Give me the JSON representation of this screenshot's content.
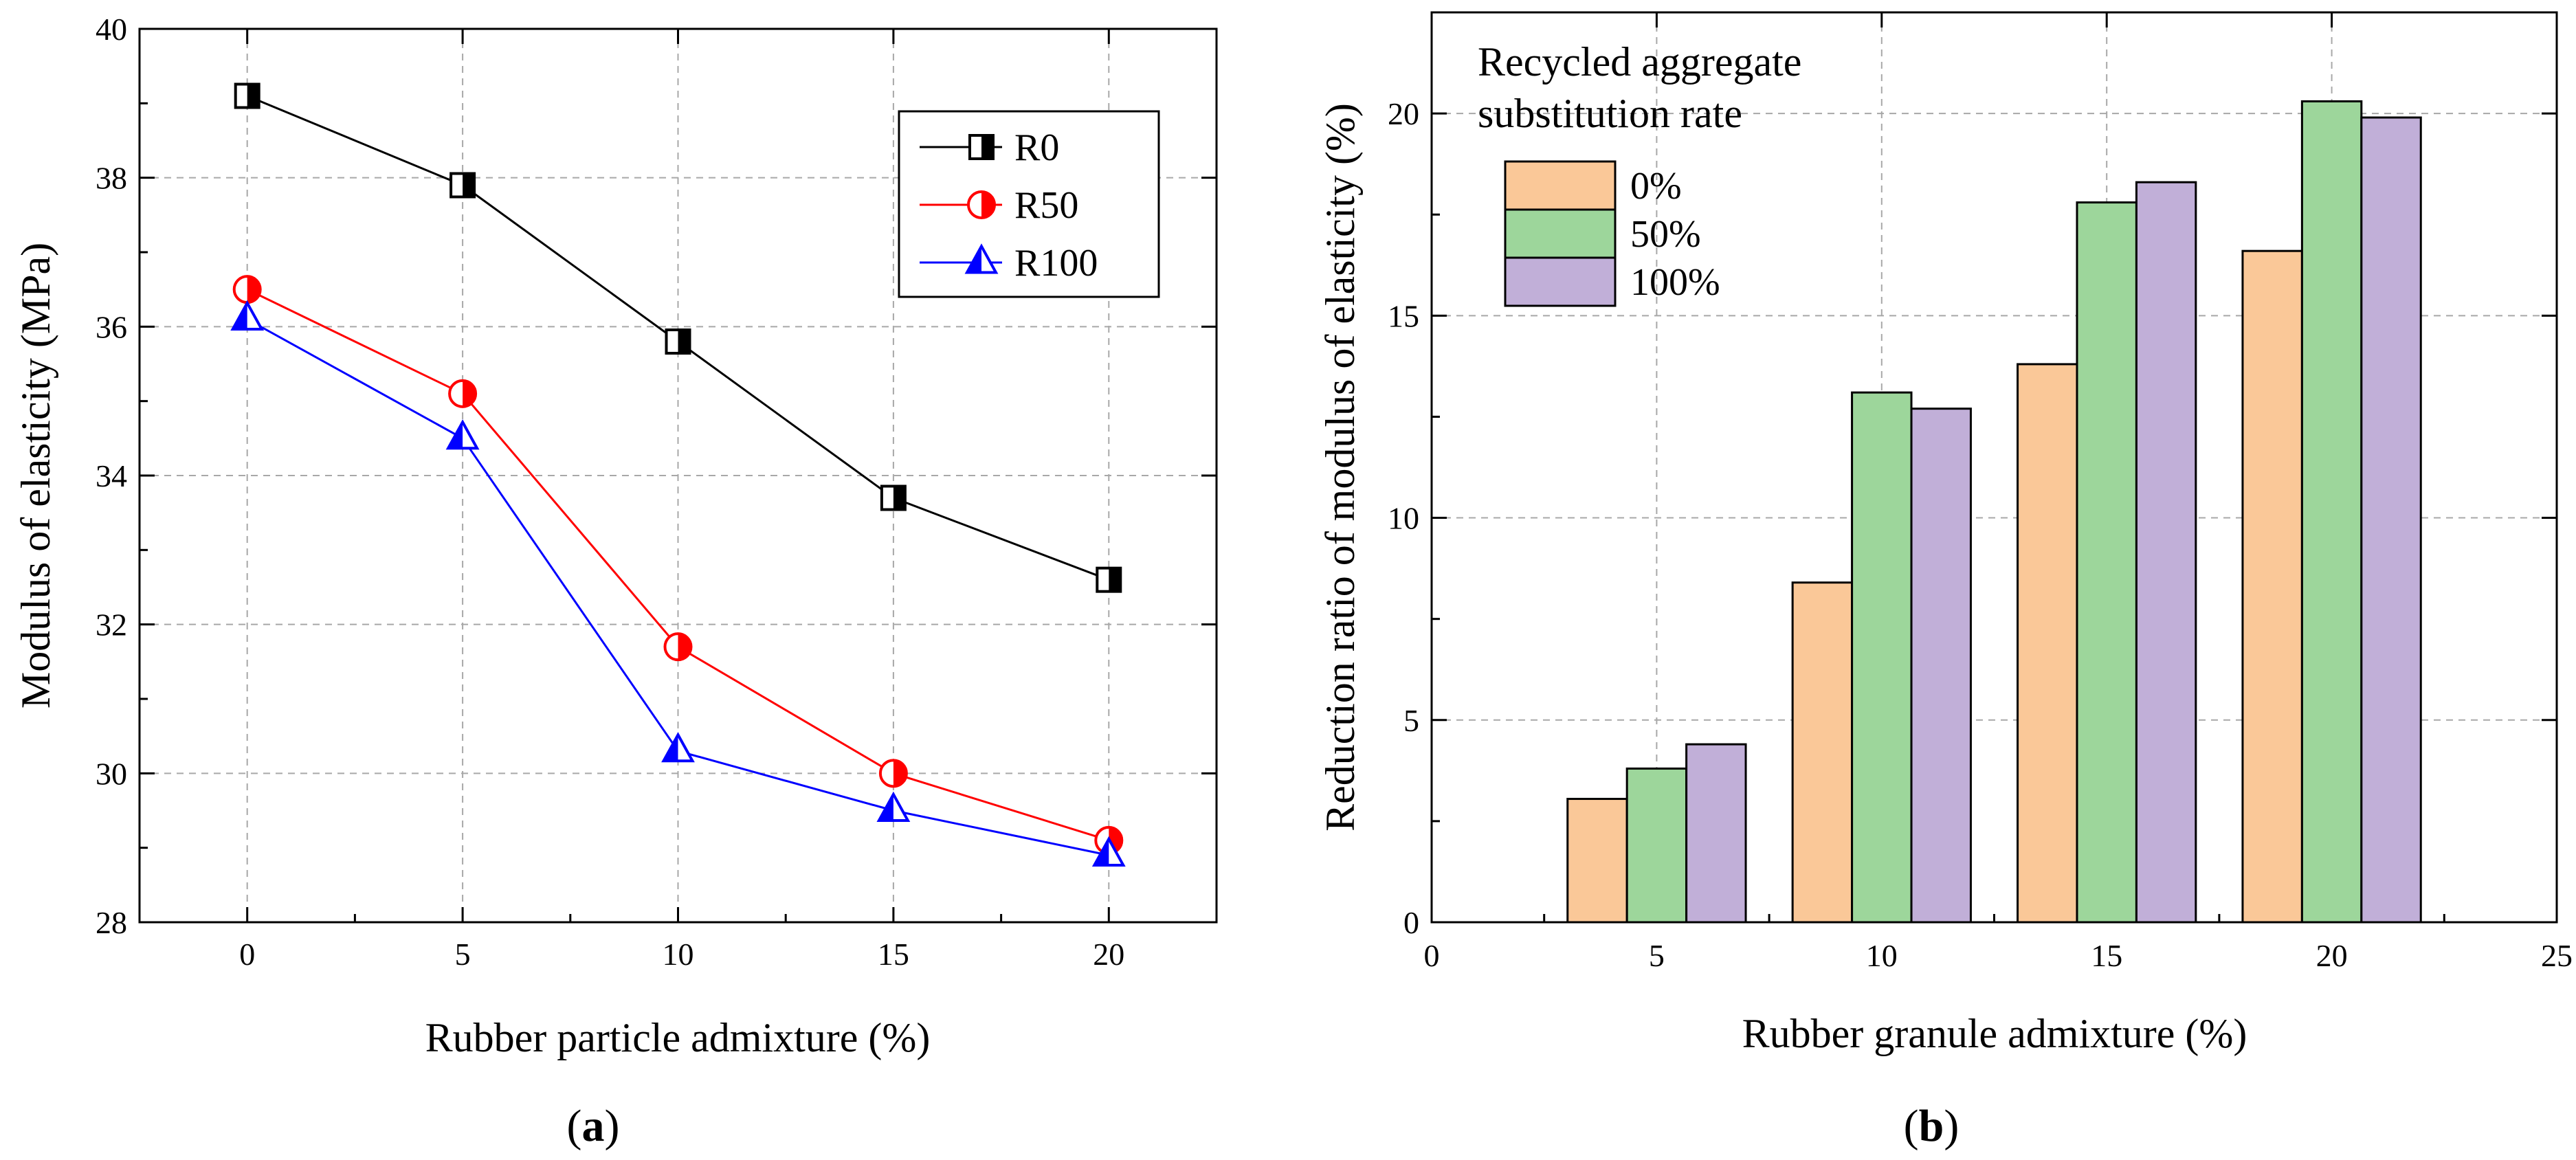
{
  "chart_data": [
    {
      "type": "line",
      "panel_label": "a",
      "xlabel": "Rubber particle admixture (%)",
      "ylabel": "Modulus of elasticity (MPa)",
      "xlim": [
        -2.5,
        22.5
      ],
      "ylim": [
        28,
        40
      ],
      "xticks": [
        "0",
        "5",
        "10",
        "15",
        "20"
      ],
      "yticks": [
        "28",
        "30",
        "32",
        "34",
        "36",
        "38",
        "40"
      ],
      "grid": true,
      "legend_position": "top-right",
      "x": [
        0,
        5,
        10,
        15,
        20
      ],
      "series": [
        {
          "name": "R0",
          "values": [
            39.1,
            37.9,
            35.8,
            33.7,
            32.6
          ],
          "color": "#000000",
          "marker": "half-square"
        },
        {
          "name": "R50",
          "values": [
            36.5,
            35.1,
            31.7,
            30.0,
            29.1
          ],
          "color": "#ff0000",
          "marker": "half-circle"
        },
        {
          "name": "R100",
          "values": [
            36.1,
            34.5,
            30.3,
            29.5,
            28.9
          ],
          "color": "#0000ff",
          "marker": "half-triangle"
        }
      ]
    },
    {
      "type": "bar",
      "panel_label": "b",
      "xlabel": "Rubber granule admixture (%)",
      "ylabel": "Reduction ratio of modulus of elasticity (%)",
      "xlim": [
        0,
        25
      ],
      "ylim": [
        0,
        22.5
      ],
      "xticks": [
        "0",
        "5",
        "10",
        "15",
        "20",
        "25"
      ],
      "yticks": [
        "0",
        "5",
        "10",
        "15",
        "20"
      ],
      "grid": true,
      "legend_title_line1": "Recycled aggregate",
      "legend_title_line2": "substitution rate",
      "legend_position": "top-left",
      "categories": [
        5,
        10,
        15,
        20
      ],
      "series": [
        {
          "name": "0%",
          "values": [
            3.05,
            8.4,
            13.8,
            16.6
          ],
          "color": "#fac898"
        },
        {
          "name": "50%",
          "values": [
            3.8,
            13.1,
            17.8,
            20.3
          ],
          "color": "#9dd69b"
        },
        {
          "name": "100%",
          "values": [
            4.4,
            12.7,
            18.3,
            19.9
          ],
          "color": "#c1afd8"
        }
      ]
    }
  ]
}
